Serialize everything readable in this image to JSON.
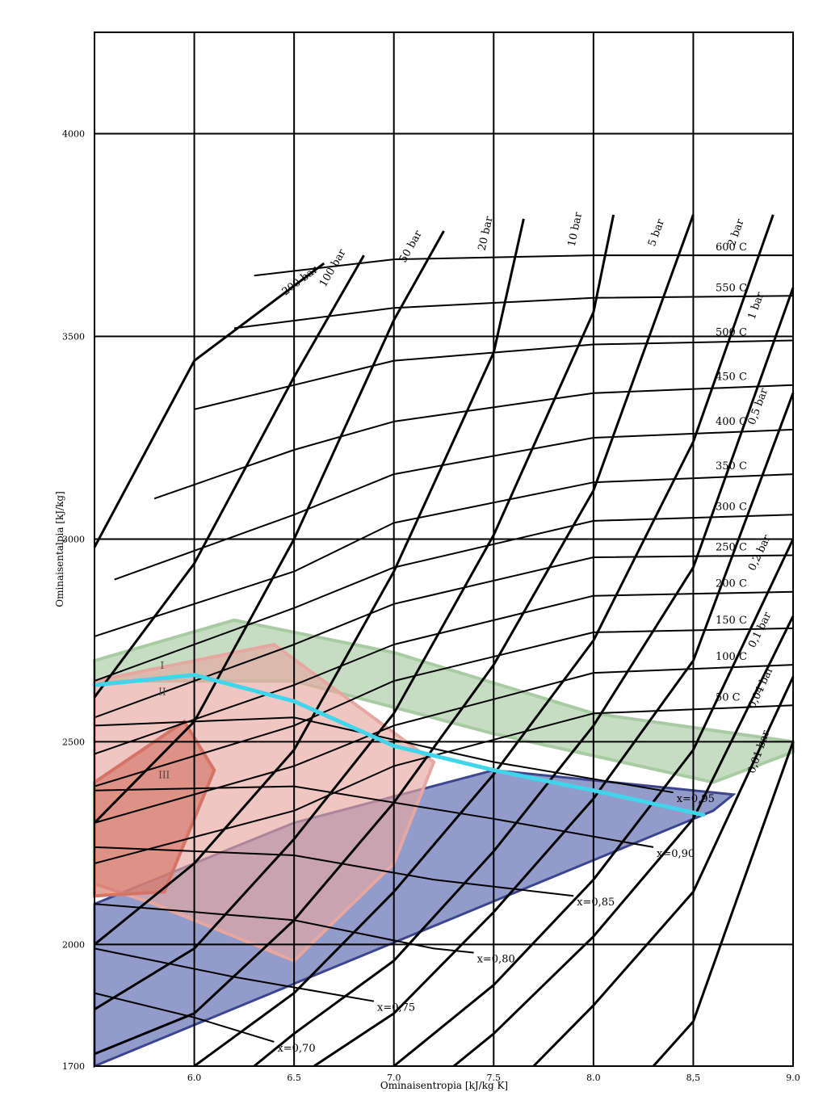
{
  "chart_data": {
    "type": "line",
    "xlabel": "Ominaisentropia [kJ/kg K]",
    "ylabel": "Ominaisentalpia [kJ/kg]",
    "xlim": [
      5.5,
      9.0
    ],
    "ylim": [
      1700,
      4250
    ],
    "x_ticks": [
      6.0,
      6.5,
      7.0,
      7.5,
      8.0,
      8.5,
      9.0
    ],
    "x_tick_labels": [
      "6.0",
      "6.5",
      "7.0",
      "7.5",
      "8.0",
      "8,5",
      "9.0"
    ],
    "y_ticks": [
      1700,
      2000,
      2500,
      3000,
      3500,
      4000
    ],
    "y_tick_labels": [
      "1700",
      "2000",
      "2500",
      "3000",
      "3500",
      "4000"
    ],
    "grid": true,
    "isobars": [
      {
        "label": "200 bar",
        "points": [
          [
            5.5,
            2980
          ],
          [
            6.0,
            3440
          ],
          [
            6.65,
            3680
          ]
        ]
      },
      {
        "label": "100 bar",
        "points": [
          [
            5.5,
            2610
          ],
          [
            6.0,
            2940
          ],
          [
            6.5,
            3400
          ],
          [
            6.85,
            3700
          ]
        ]
      },
      {
        "label": "50 bar",
        "points": [
          [
            5.5,
            2300
          ],
          [
            6.0,
            2550
          ],
          [
            6.5,
            3000
          ],
          [
            7.0,
            3540
          ],
          [
            7.25,
            3760
          ]
        ]
      },
      {
        "label": "20 bar",
        "points": [
          [
            5.5,
            2000
          ],
          [
            6.0,
            2200
          ],
          [
            6.5,
            2480
          ],
          [
            7.0,
            2920
          ],
          [
            7.5,
            3460
          ],
          [
            7.65,
            3790
          ]
        ]
      },
      {
        "label": "10 bar",
        "points": [
          [
            5.5,
            1840
          ],
          [
            6.0,
            1990
          ],
          [
            6.5,
            2260
          ],
          [
            7.0,
            2570
          ],
          [
            7.5,
            3010
          ],
          [
            8.0,
            3560
          ],
          [
            8.1,
            3800
          ]
        ]
      },
      {
        "label": "5 bar",
        "points": [
          [
            5.5,
            1730
          ],
          [
            6.0,
            1830
          ],
          [
            6.5,
            2060
          ],
          [
            7.0,
            2350
          ],
          [
            7.5,
            2690
          ],
          [
            8.0,
            3120
          ],
          [
            8.5,
            3800
          ]
        ]
      },
      {
        "label": "2 bar",
        "points": [
          [
            6.0,
            1700
          ],
          [
            6.5,
            1880
          ],
          [
            7.0,
            2130
          ],
          [
            7.5,
            2420
          ],
          [
            8.0,
            2750
          ],
          [
            8.5,
            3240
          ],
          [
            8.9,
            3800
          ]
        ]
      },
      {
        "label": "1 bar",
        "points": [
          [
            6.3,
            1700
          ],
          [
            6.5,
            1780
          ],
          [
            7.0,
            1960
          ],
          [
            7.5,
            2230
          ],
          [
            8.0,
            2540
          ],
          [
            8.5,
            2930
          ],
          [
            9.0,
            3620
          ]
        ]
      },
      {
        "label": "0,5 bar",
        "points": [
          [
            6.6,
            1700
          ],
          [
            7.0,
            1830
          ],
          [
            7.5,
            2080
          ],
          [
            8.0,
            2360
          ],
          [
            8.5,
            2700
          ],
          [
            9.0,
            3360
          ]
        ]
      },
      {
        "label": "0,2 bar",
        "points": [
          [
            7.0,
            1700
          ],
          [
            7.5,
            1900
          ],
          [
            8.0,
            2160
          ],
          [
            8.5,
            2480
          ],
          [
            9.0,
            3000
          ]
        ]
      },
      {
        "label": "0,1 bar",
        "points": [
          [
            7.3,
            1700
          ],
          [
            7.5,
            1780
          ],
          [
            8.0,
            2020
          ],
          [
            8.5,
            2310
          ],
          [
            9.0,
            2810
          ]
        ]
      },
      {
        "label": "0,04 bar",
        "points": [
          [
            7.7,
            1700
          ],
          [
            8.0,
            1850
          ],
          [
            8.5,
            2130
          ],
          [
            9.0,
            2660
          ]
        ]
      },
      {
        "label": "0,01 bar",
        "points": [
          [
            8.3,
            1700
          ],
          [
            8.5,
            1810
          ],
          [
            9.0,
            2500
          ]
        ]
      }
    ],
    "isotherms": [
      {
        "label": "600 C",
        "points": [
          [
            6.3,
            3650
          ],
          [
            7.0,
            3690
          ],
          [
            8.0,
            3700
          ],
          [
            9.0,
            3700
          ]
        ]
      },
      {
        "label": "550 C",
        "points": [
          [
            6.2,
            3520
          ],
          [
            7.0,
            3570
          ],
          [
            8.0,
            3595
          ],
          [
            9.0,
            3600
          ]
        ]
      },
      {
        "label": "500 C",
        "points": [
          [
            6.0,
            3320
          ],
          [
            7.0,
            3440
          ],
          [
            8.0,
            3480
          ],
          [
            9.0,
            3490
          ]
        ]
      },
      {
        "label": "450 C",
        "points": [
          [
            5.8,
            3100
          ],
          [
            6.5,
            3220
          ],
          [
            7.0,
            3290
          ],
          [
            8.0,
            3360
          ],
          [
            9.0,
            3380
          ]
        ]
      },
      {
        "label": "400 C",
        "points": [
          [
            5.6,
            2900
          ],
          [
            6.5,
            3060
          ],
          [
            7.0,
            3160
          ],
          [
            8.0,
            3250
          ],
          [
            9.0,
            3270
          ]
        ]
      },
      {
        "label": "350 C",
        "points": [
          [
            5.5,
            2760
          ],
          [
            6.5,
            2920
          ],
          [
            7.0,
            3040
          ],
          [
            8.0,
            3140
          ],
          [
            9.0,
            3160
          ]
        ]
      },
      {
        "label": "300 C",
        "points": [
          [
            5.5,
            2650
          ],
          [
            6.5,
            2830
          ],
          [
            7.0,
            2930
          ],
          [
            8.0,
            3045
          ],
          [
            9.0,
            3060
          ]
        ]
      },
      {
        "label": "250 C",
        "points": [
          [
            5.5,
            2560
          ],
          [
            6.5,
            2740
          ],
          [
            7.0,
            2840
          ],
          [
            8.0,
            2955
          ],
          [
            9.0,
            2960
          ]
        ]
      },
      {
        "label": "200 C",
        "points": [
          [
            5.5,
            2470
          ],
          [
            6.5,
            2640
          ],
          [
            7.0,
            2740
          ],
          [
            8.0,
            2860
          ],
          [
            9.0,
            2870
          ]
        ]
      },
      {
        "label": "150 C",
        "points": [
          [
            5.5,
            2390
          ],
          [
            6.5,
            2540
          ],
          [
            7.0,
            2650
          ],
          [
            8.0,
            2770
          ],
          [
            9.0,
            2780
          ]
        ]
      },
      {
        "label": "100 C",
        "points": [
          [
            5.5,
            2300
          ],
          [
            6.5,
            2440
          ],
          [
            7.0,
            2540
          ],
          [
            8.0,
            2670
          ],
          [
            9.0,
            2690
          ]
        ]
      },
      {
        "label": "50 C",
        "points": [
          [
            5.5,
            2200
          ],
          [
            6.5,
            2330
          ],
          [
            7.0,
            2440
          ],
          [
            8.0,
            2570
          ],
          [
            9.0,
            2590
          ]
        ]
      }
    ],
    "quality_lines": [
      {
        "label": "x=0,95",
        "points": [
          [
            5.5,
            2540
          ],
          [
            6.5,
            2560
          ],
          [
            7.5,
            2450
          ],
          [
            8.4,
            2375
          ]
        ]
      },
      {
        "label": "x=0,90",
        "points": [
          [
            5.5,
            2380
          ],
          [
            6.5,
            2390
          ],
          [
            7.5,
            2310
          ],
          [
            8.3,
            2240
          ]
        ]
      },
      {
        "label": "x=0,85",
        "points": [
          [
            5.5,
            2240
          ],
          [
            6.5,
            2220
          ],
          [
            7.2,
            2160
          ],
          [
            7.9,
            2120
          ]
        ]
      },
      {
        "label": "x=0,80",
        "points": [
          [
            5.5,
            2100
          ],
          [
            6.5,
            2060
          ],
          [
            7.2,
            1990
          ],
          [
            7.4,
            1980
          ]
        ]
      },
      {
        "label": "x=0,75",
        "points": [
          [
            5.5,
            1990
          ],
          [
            6.2,
            1920
          ],
          [
            6.9,
            1860
          ]
        ]
      },
      {
        "label": "x=0,70",
        "points": [
          [
            5.5,
            1880
          ],
          [
            6.0,
            1820
          ],
          [
            6.4,
            1760
          ]
        ]
      }
    ],
    "regions": [
      {
        "label": "I",
        "color": "#a9cba3"
      },
      {
        "label": "II",
        "color": "#e6a7a1"
      },
      {
        "label": "III",
        "color": "#d47466"
      }
    ],
    "expansion_line_color": "#41d5ec",
    "wet_region_color": "#6f7ab8"
  }
}
